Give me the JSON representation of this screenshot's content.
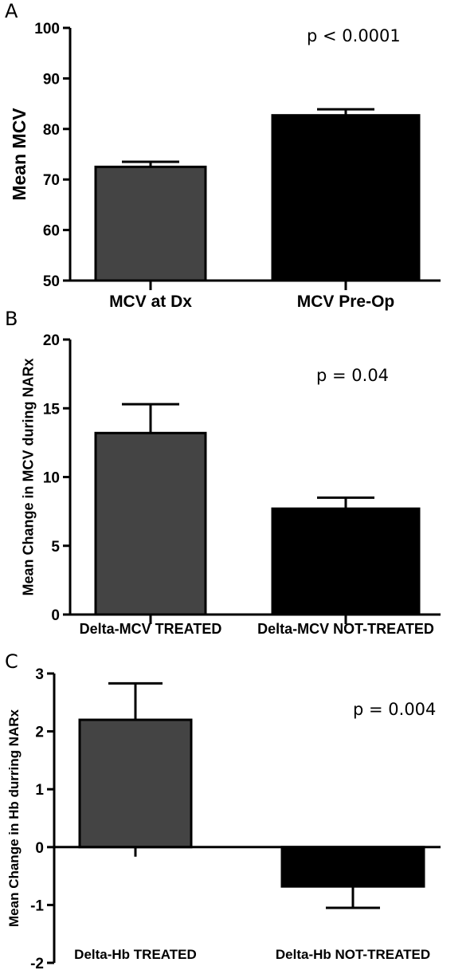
{
  "figure": {
    "panels": [
      "A",
      "B",
      "C"
    ]
  },
  "chart_data": [
    {
      "panel": "A",
      "type": "bar",
      "categories": [
        "MCV at Dx",
        "MCV Pre-Op"
      ],
      "values": [
        72.5,
        82.7
      ],
      "error_upper": [
        1.0,
        1.2
      ],
      "colors": [
        "#444444",
        "#000000"
      ],
      "title": "",
      "xlabel": "",
      "ylabel": "Mean MCV",
      "ylim": [
        50,
        100
      ],
      "yticks": [
        50,
        60,
        70,
        80,
        90,
        100
      ],
      "annotation": "p < 0.0001",
      "grid": false,
      "legend": "none"
    },
    {
      "panel": "B",
      "type": "bar",
      "categories": [
        "Delta-MCV TREATED",
        "Delta-MCV NOT-TREATED"
      ],
      "values": [
        13.2,
        7.7
      ],
      "error_upper": [
        2.1,
        0.8
      ],
      "colors": [
        "#444444",
        "#000000"
      ],
      "title": "",
      "xlabel": "",
      "ylabel": "Mean Change in MCV during NARx",
      "ylim": [
        0,
        20
      ],
      "yticks": [
        0,
        5,
        10,
        15,
        20
      ],
      "annotation": "p = 0.04",
      "grid": false,
      "legend": "none"
    },
    {
      "panel": "C",
      "type": "bar",
      "categories": [
        "Delta-Hb TREATED",
        "Delta-Hb NOT-TREATED"
      ],
      "values": [
        2.2,
        -0.68
      ],
      "error_upper": [
        0.63,
        -0.37
      ],
      "colors": [
        "#444444",
        "#000000"
      ],
      "title": "",
      "xlabel": "",
      "ylabel": "Mean Change in Hb durring NARx",
      "ylim": [
        -2,
        3
      ],
      "yticks": [
        -2,
        -1,
        0,
        1,
        2,
        3
      ],
      "annotation": "p = 0.004",
      "grid": false,
      "legend": "none"
    }
  ]
}
